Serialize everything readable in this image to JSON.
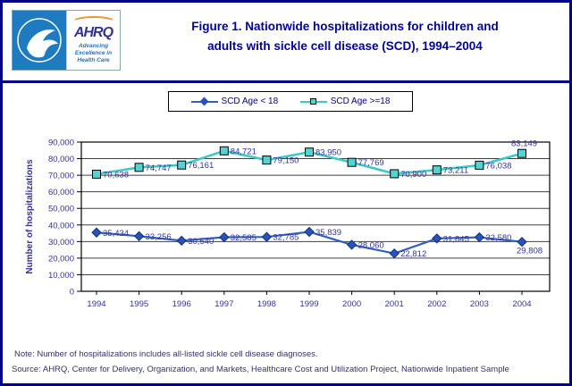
{
  "header": {
    "title_line1": "Figure 1. Nationwide hospitalizations for children and",
    "title_line2": "adults with sickle cell disease (SCD), 1994–2004",
    "logo": {
      "ahrq_text": "AHRQ",
      "tagline": "Advancing\nExcellence in\nHealth Care"
    }
  },
  "legend": [
    {
      "label": "SCD Age < 18",
      "marker": "diamond"
    },
    {
      "label": "SCD Age >=18",
      "marker": "square"
    }
  ],
  "notes": {
    "note": "Note: Number of hospitalizations includes all-listed sickle cell disease diagnoses.",
    "source": "Source: AHRQ, Center for Delivery, Organization, and Markets, Healthcare Cost and Utilization Project, Nationwide Inpatient Sample"
  },
  "chart_data": {
    "type": "line",
    "title": "Figure 1. Nationwide hospitalizations for children and adults with sickle cell disease (SCD), 1994–2004",
    "categories": [
      "1994",
      "1995",
      "1996",
      "1997",
      "1998",
      "1999",
      "2000",
      "2001",
      "2002",
      "2003",
      "2004"
    ],
    "series": [
      {
        "name": "SCD Age < 18",
        "values": [
          35434,
          33256,
          30540,
          32585,
          32785,
          35839,
          28060,
          22812,
          31845,
          32580,
          29808
        ],
        "color": "#2F5FC0",
        "marker": "diamond",
        "marker_fill": "#2A52B8",
        "marker_stroke": "#16307E"
      },
      {
        "name": "SCD Age >=18",
        "values": [
          70638,
          74747,
          76161,
          84721,
          79150,
          83950,
          77769,
          70900,
          73211,
          76038,
          83149
        ],
        "color": "#3FC8C8",
        "marker": "square",
        "marker_fill": "#55D2D2",
        "marker_stroke": "#000000"
      }
    ],
    "xlabel": "",
    "ylabel": "Number of hospitalizations",
    "ylim": [
      0,
      90000
    ],
    "ytick_step": 10000,
    "grid": true,
    "legend_position": "top",
    "label_color": "#333399",
    "axis_text_color": "#333399",
    "label_offsets": [
      {
        "10": [
          -6,
          13
        ]
      },
      {
        "10": [
          -12,
          -8
        ]
      }
    ]
  }
}
